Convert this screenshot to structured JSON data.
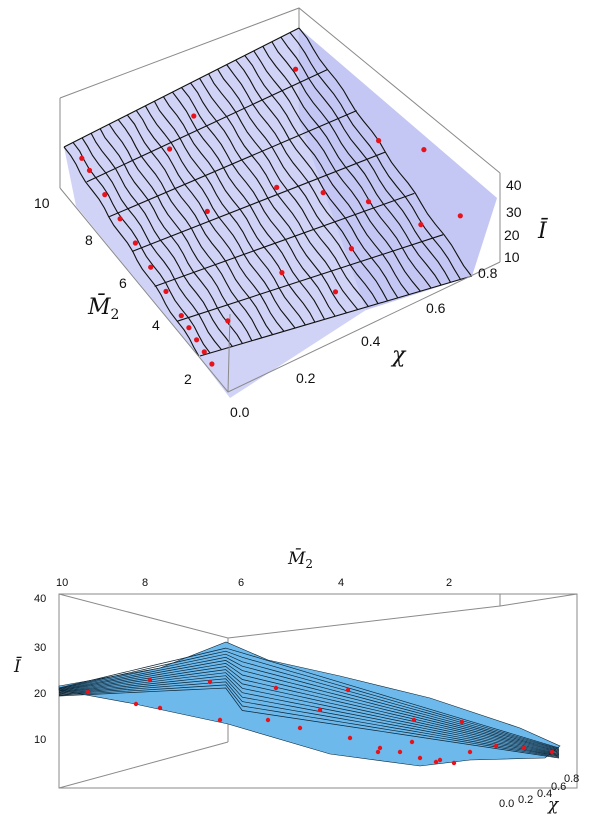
{
  "chart_data": [
    {
      "type": "surface3d",
      "title": "",
      "x_axis": {
        "label": "χ",
        "ticks": [
          "0.0",
          "0.2",
          "0.4",
          "0.6",
          "0.8"
        ],
        "range": [
          0,
          0.85
        ]
      },
      "y_axis": {
        "label_base": "M̄",
        "label_sub": "2",
        "ticks": [
          "2",
          "4",
          "6",
          "8",
          "10"
        ],
        "range": [
          1,
          11
        ]
      },
      "z_axis": {
        "label": "Ī",
        "ticks": [
          "10",
          "20",
          "30",
          "40"
        ],
        "range": [
          0,
          45
        ]
      },
      "surface_color": "#c9cdf4",
      "mesh_color": "#111111",
      "point_color": "#e8121b",
      "points": [
        {
          "chi": 0.0,
          "m2": 10.5,
          "i": 21
        },
        {
          "chi": 0.0,
          "m2": 10.0,
          "i": 20
        },
        {
          "chi": 0.0,
          "m2": 9.0,
          "i": 18
        },
        {
          "chi": 0.0,
          "m2": 8.0,
          "i": 16
        },
        {
          "chi": 0.0,
          "m2": 7.0,
          "i": 14
        },
        {
          "chi": 0.0,
          "m2": 6.0,
          "i": 12
        },
        {
          "chi": 0.0,
          "m2": 5.0,
          "i": 10
        },
        {
          "chi": 0.0,
          "m2": 4.0,
          "i": 8
        },
        {
          "chi": 0.0,
          "m2": 3.5,
          "i": 7
        },
        {
          "chi": 0.0,
          "m2": 3.0,
          "i": 6
        },
        {
          "chi": 0.0,
          "m2": 2.5,
          "i": 5
        },
        {
          "chi": 0.0,
          "m2": 2.0,
          "i": 4
        },
        {
          "chi": 0.2,
          "m2": 9.0,
          "i": 26
        },
        {
          "chi": 0.3,
          "m2": 9.5,
          "i": 30
        },
        {
          "chi": 0.6,
          "m2": 9.0,
          "i": 36
        },
        {
          "chi": 0.2,
          "m2": 6.5,
          "i": 20
        },
        {
          "chi": 0.4,
          "m2": 6.0,
          "i": 22
        },
        {
          "chi": 0.5,
          "m2": 5.0,
          "i": 22
        },
        {
          "chi": 0.7,
          "m2": 5.5,
          "i": 28
        },
        {
          "chi": 0.6,
          "m2": 4.0,
          "i": 20
        },
        {
          "chi": 0.8,
          "m2": 4.5,
          "i": 26
        },
        {
          "chi": 0.3,
          "m2": 3.5,
          "i": 12
        },
        {
          "chi": 0.5,
          "m2": 3.0,
          "i": 14
        },
        {
          "chi": 0.7,
          "m2": 2.5,
          "i": 16
        },
        {
          "chi": 0.1,
          "m2": 3.0,
          "i": 8
        },
        {
          "chi": 0.8,
          "m2": 2.0,
          "i": 18
        },
        {
          "chi": 0.4,
          "m2": 2.0,
          "i": 10
        }
      ]
    },
    {
      "type": "surface3d",
      "title": "",
      "x_axis": {
        "label": "χ",
        "ticks": [
          "0.0",
          "0.2",
          "0.4",
          "0.6",
          "0.8"
        ],
        "range": [
          0,
          0.85
        ]
      },
      "y_axis": {
        "label_base": "M̄",
        "label_sub": "2",
        "ticks": [
          "10",
          "8",
          "6",
          "4",
          "2"
        ],
        "range": [
          0.5,
          10
        ]
      },
      "z_axis": {
        "label": "Ī",
        "ticks": [
          "10",
          "20",
          "30",
          "40"
        ],
        "range": [
          0,
          40
        ]
      },
      "surface_color": "#6cb8ea",
      "mesh_color": "#0d2636",
      "point_color": "#e8121b"
    }
  ]
}
